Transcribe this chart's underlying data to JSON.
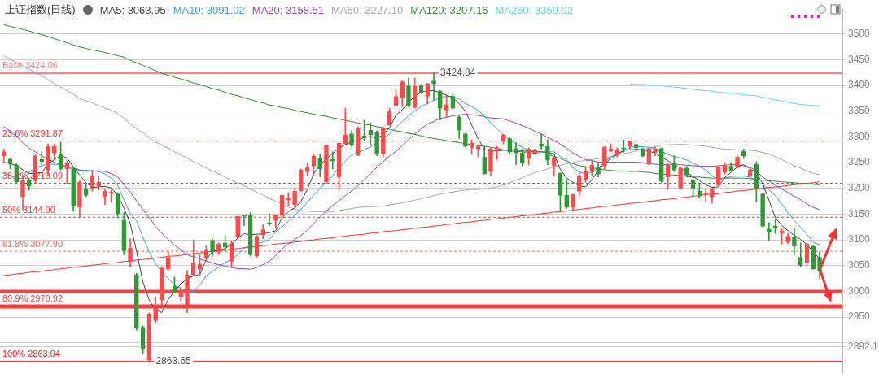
{
  "chart_data": {
    "type": "candlestick",
    "title": "上证指数(日线)",
    "categories": [
      null,
      null,
      null,
      null,
      null,
      null,
      null,
      null,
      null,
      null,
      null,
      null,
      null,
      null,
      null,
      null,
      null,
      null,
      null,
      null,
      null,
      null,
      null,
      null,
      null,
      null,
      null,
      null,
      null,
      null,
      null,
      null,
      null,
      null,
      null,
      null,
      null,
      null,
      null,
      null,
      null,
      null,
      null,
      null,
      null,
      null,
      null,
      null,
      null,
      null,
      null,
      null,
      null,
      null,
      null,
      null,
      null,
      null,
      null,
      null,
      null,
      null,
      null,
      null,
      null,
      null,
      null,
      null,
      null,
      null,
      null,
      null,
      null,
      null,
      null,
      null,
      null,
      null,
      null,
      null,
      null,
      null,
      null,
      null,
      null,
      null,
      null,
      null,
      null,
      null,
      null,
      null,
      null,
      null,
      null,
      null,
      null,
      null,
      null,
      null,
      null,
      null,
      null,
      null,
      null,
      null,
      null,
      null,
      null,
      null,
      null,
      null,
      null,
      null,
      null,
      null,
      null,
      null,
      null,
      null,
      null,
      null,
      null,
      null,
      null,
      null,
      null,
      null,
      null,
      null
    ],
    "ohlc": [
      [
        3263.6,
        3276.4,
        3250.7,
        3271.3
      ],
      [
        3255.9,
        3258.4,
        3237.9,
        3250.7
      ],
      [
        3245.6,
        3248.2,
        3209.7,
        3212.3
      ],
      [
        3184.1,
        3225.1,
        3158.4,
        3214.9
      ],
      [
        3214.9,
        3220,
        3196.9,
        3204.6
      ],
      [
        3214.9,
        3266.1,
        3209.7,
        3263.6
      ],
      [
        3255.9,
        3271.3,
        3245.6,
        3251.8
      ],
      [
        3235.4,
        3286.6,
        3225.1,
        3281.5
      ],
      [
        3268.7,
        3286.6,
        3255.9,
        3281.5
      ],
      [
        3266.1,
        3289.2,
        3235.4,
        3237.9
      ],
      [
        3237.9,
        3253.3,
        3209.7,
        3248.2
      ],
      [
        3237.9,
        3240.5,
        3155.9,
        3166.1
      ],
      [
        3163.6,
        3214.9,
        3143.1,
        3212.3
      ],
      [
        3199.5,
        3209.7,
        3184.1,
        3186.6
      ],
      [
        3199.5,
        3235.4,
        3194.3,
        3225.1
      ],
      [
        3204.6,
        3225.1,
        3196.9,
        3212.3
      ],
      [
        3184.1,
        3199.5,
        3168.7,
        3194.3
      ],
      [
        3191.8,
        3196.9,
        3173.8,
        3193
      ],
      [
        3189.2,
        3191.8,
        3143.1,
        3150.8
      ],
      [
        3137.9,
        3153.3,
        3071.3,
        3079
      ],
      [
        3058.5,
        3102,
        3048.2,
        3084.1
      ],
      [
        3032.8,
        3035.4,
        2925,
        2927.7
      ],
      [
        2930.3,
        2932.8,
        2879,
        2886.7
      ],
      [
        2866.1,
        2958.5,
        2863.65,
        2955.9
      ],
      [
        2943.1,
        2989.2,
        2938,
        2973.8
      ],
      [
        2984.1,
        3048.2,
        2971.3,
        3045.6
      ],
      [
        3043.1,
        3079,
        3040.5,
        3066.1
      ],
      [
        3009.7,
        3027.7,
        2996.9,
        2999.5
      ],
      [
        2989.2,
        3007.2,
        2981.5,
        3002
      ],
      [
        2968.7,
        3040.5,
        2958.5,
        3032.8
      ],
      [
        3032.8,
        3099.5,
        3030.2,
        3055.9
      ],
      [
        3043.1,
        3071.3,
        3030.2,
        3053.3
      ],
      [
        3066.1,
        3089.2,
        3058.5,
        3081.5
      ],
      [
        3099.5,
        3102,
        3068.7,
        3076.4
      ],
      [
        3076.4,
        3094.3,
        3071.3,
        3091.8
      ],
      [
        3094.3,
        3107.2,
        3076.4,
        3086.6
      ],
      [
        3058.5,
        3096.9,
        3045.6,
        3094.3
      ],
      [
        3104.6,
        3145.6,
        3102,
        3145.6
      ],
      [
        3148.2,
        3148.2,
        3127.7,
        3145.6
      ],
      [
        3148.2,
        3153.3,
        3068.7,
        3071.3
      ],
      [
        3068.7,
        3109.7,
        3066.1,
        3107.2
      ],
      [
        3109.7,
        3130.2,
        3102,
        3120
      ],
      [
        3133.8,
        3150.8,
        3127.7,
        3130.2
      ],
      [
        3137.9,
        3148.2,
        3122.5,
        3148.2
      ],
      [
        3148.2,
        3186.6,
        3143.1,
        3186.6
      ],
      [
        3177.4,
        3191.8,
        3166.1,
        3180.5
      ],
      [
        3168.7,
        3199.5,
        3163.6,
        3194.3
      ],
      [
        3195.4,
        3237.9,
        3194.3,
        3235.4
      ],
      [
        3232.8,
        3250.7,
        3225.1,
        3240.5
      ],
      [
        3243.1,
        3266.1,
        3225.1,
        3262.5
      ],
      [
        3258.4,
        3266.1,
        3222.5,
        3237.9
      ],
      [
        3212.3,
        3284.1,
        3209.7,
        3284.1
      ],
      [
        3255.9,
        3271.3,
        3237.9,
        3253.3
      ],
      [
        3222.5,
        3287.7,
        3196.9,
        3287.7
      ],
      [
        3286.6,
        3355.9,
        3286.6,
        3303.6
      ],
      [
        3306.1,
        3312.3,
        3281.5,
        3284.1
      ],
      [
        3264.6,
        3320,
        3263.6,
        3316.4
      ],
      [
        3302,
        3332.8,
        3291.8,
        3297.9
      ],
      [
        3313.3,
        3327.7,
        3284.1,
        3304.6
      ],
      [
        3308.2,
        3312.3,
        3263.6,
        3266.1
      ],
      [
        3267.2,
        3320,
        3261,
        3317.4
      ],
      [
        3323.6,
        3355.9,
        3322.5,
        3349.2
      ],
      [
        3361,
        3391.8,
        3358.4,
        3379
      ],
      [
        3376.4,
        3409.7,
        3358.4,
        3407.1
      ],
      [
        3399.5,
        3414.8,
        3358.4,
        3359.5
      ],
      [
        3356.9,
        3414.8,
        3355.9,
        3398.4
      ],
      [
        3399.5,
        3402,
        3384.1,
        3386.6
      ],
      [
        3379,
        3404.6,
        3363.6,
        3403.6
      ],
      [
        3408.7,
        3424.84,
        3371.3,
        3403.6
      ],
      [
        3389.2,
        3390.2,
        3332.8,
        3355.9
      ],
      [
        3352.3,
        3381.5,
        3337.9,
        3362.5
      ],
      [
        3379,
        3385.1,
        3354.3,
        3355.9
      ],
      [
        3338.9,
        3342,
        3296.9,
        3313.3
      ],
      [
        3306.1,
        3307.2,
        3280.5,
        3281.5
      ],
      [
        3279,
        3294.3,
        3266.1,
        3287.7
      ],
      [
        3276.4,
        3284.1,
        3261,
        3281.5
      ],
      [
        3261,
        3281.5,
        3227.7,
        3227.7
      ],
      [
        3232.8,
        3279,
        3225.1,
        3276.4
      ],
      [
        3276.4,
        3281.5,
        3255.9,
        3277.9
      ],
      [
        3291.8,
        3305.6,
        3286.6,
        3303.6
      ],
      [
        3296.9,
        3299.5,
        3268.7,
        3271.3
      ],
      [
        3277.9,
        3289.2,
        3246.6,
        3268.7
      ],
      [
        3268.7,
        3276.4,
        3243.1,
        3249.7
      ],
      [
        3258.4,
        3279,
        3245.6,
        3276.4
      ],
      [
        3268.2,
        3276.4,
        3266.1,
        3273.8
      ],
      [
        3286.6,
        3305.6,
        3276.4,
        3281.5
      ],
      [
        3281.5,
        3294.3,
        3245.6,
        3254.9
      ],
      [
        3244.6,
        3261,
        3225.1,
        3258.4
      ],
      [
        3230.2,
        3230.2,
        3155.9,
        3186.6
      ],
      [
        3186.6,
        3217.4,
        3161,
        3163.6
      ],
      [
        3163.6,
        3189.2,
        3155.9,
        3188.2
      ],
      [
        3194.3,
        3232.8,
        3184.1,
        3225.1
      ],
      [
        3217.4,
        3243.1,
        3212.3,
        3234.3
      ],
      [
        3232.8,
        3253.3,
        3225.1,
        3245.6
      ],
      [
        3241.5,
        3250.7,
        3222.5,
        3227.7
      ],
      [
        3243.1,
        3281.5,
        3237.9,
        3280.5
      ],
      [
        3272.3,
        3286.6,
        3271.3,
        3276.4
      ],
      [
        3266.1,
        3279,
        3261,
        3275.4
      ],
      [
        3279,
        3294.3,
        3270.2,
        3276.4
      ],
      [
        3281.5,
        3292.8,
        3276.4,
        3290.7
      ],
      [
        3285.6,
        3286.6,
        3273.8,
        3279
      ],
      [
        3277.4,
        3279,
        3261,
        3263.6
      ],
      [
        3248.2,
        3279,
        3245.6,
        3276.4
      ],
      [
        3270.2,
        3280.5,
        3263.6,
        3276.4
      ],
      [
        3277.9,
        3279,
        3212.3,
        3213.8
      ],
      [
        3222.5,
        3248.2,
        3198.4,
        3245.6
      ],
      [
        3249.7,
        3263.6,
        3232.8,
        3235.4
      ],
      [
        3200.5,
        3240.5,
        3198.4,
        3239.5
      ],
      [
        3239.5,
        3243.1,
        3222.5,
        3226.1
      ],
      [
        3214.9,
        3222.5,
        3185.1,
        3200.5
      ],
      [
        3194.3,
        3210.7,
        3181.5,
        3185.1
      ],
      [
        3189.2,
        3199.5,
        3173.8,
        3190.2
      ],
      [
        3183.1,
        3200.5,
        3171.3,
        3199.5
      ],
      [
        3205.6,
        3243.1,
        3203.6,
        3241.5
      ],
      [
        3231.3,
        3250.7,
        3227.7,
        3244.6
      ],
      [
        3243.1,
        3250.7,
        3232.8,
        3234.3
      ],
      [
        3240.5,
        3263.6,
        3239.5,
        3261
      ],
      [
        3272.3,
        3276.4,
        3258.4,
        3263.6
      ],
      [
        3224.1,
        3237.9,
        3222.5,
        3235.4
      ],
      [
        3246.6,
        3251.8,
        3173.8,
        3199.5
      ],
      [
        3189.2,
        3190.2,
        3125.1,
        3126.6
      ],
      [
        3121,
        3133.8,
        3099.5,
        3115.9
      ],
      [
        3126.6,
        3139,
        3112.3,
        3122.5
      ],
      [
        3113.3,
        3123.6,
        3091.8,
        3117.4
      ],
      [
        3095.4,
        3112.3,
        3092.8,
        3107.2
      ],
      [
        3105.6,
        3122.5,
        3071.3,
        3087.7
      ],
      [
        3066.1,
        3094.3,
        3048.2,
        3050.7
      ],
      [
        3055.9,
        3094.3,
        3048.2,
        3092.8
      ],
      [
        3087.7,
        3089.2,
        3043.1,
        3044.1
      ],
      [
        3066.1,
        3077.4,
        3025.1,
        3040.5
      ]
    ],
    "series": [
      {
        "type": "line",
        "name": "MA5: 3063.95",
        "color": "#444444",
        "values": [
          3251,
          3248,
          3245,
          3236,
          3229,
          3229,
          3231,
          3247,
          3256,
          3264,
          3259,
          3242,
          3226,
          3211,
          3202,
          3203,
          3204,
          3201,
          3187,
          3162,
          3132,
          3078,
          3018,
          2983,
          2964,
          2959,
          2984,
          3000,
          3014,
          3025,
          3030,
          3033,
          3061,
          3078,
          3080,
          3083,
          3092,
          3104,
          3112,
          3110,
          3111,
          3112,
          3114,
          3118,
          3143,
          3155,
          3162,
          3175,
          3198,
          3228,
          3246,
          3257,
          3268,
          3278,
          3285,
          3290,
          3294,
          3299,
          3301,
          3297,
          3305,
          3318,
          3342,
          3353,
          3367,
          3379,
          3387,
          3390,
          3390,
          3386,
          3381,
          3376,
          3365,
          3350,
          3323,
          3297,
          3276,
          3272,
          3273,
          3274,
          3275,
          3275,
          3273,
          3272,
          3271,
          3271,
          3270,
          3267,
          3237,
          3220,
          3212,
          3205,
          3203,
          3217,
          3235,
          3249,
          3258,
          3266,
          3274,
          3275,
          3276,
          3275,
          3273,
          3268,
          3261,
          3254,
          3246,
          3239,
          3231,
          3223,
          3215,
          3207,
          3202,
          3203,
          3221,
          3231,
          3242,
          3246,
          3238,
          3231,
          3209,
          3177,
          3143,
          3128,
          3118,
          3109,
          3101,
          3091,
          3077,
          3064
        ]
      },
      {
        "type": "line",
        "name": "MA10: 3091.02",
        "color": "#3b9be8",
        "values": [
          3229,
          3225,
          3220,
          3219,
          3231,
          3241,
          3244,
          3247,
          3247,
          3246,
          3243,
          3240,
          3236,
          3233,
          3234,
          3233,
          3228,
          3220,
          3207,
          3178,
          3151,
          3137,
          3105,
          3077,
          3054,
          3037,
          3025,
          3012,
          3006,
          3000,
          3000,
          3012,
          3030,
          3039,
          3047,
          3056,
          3062,
          3071,
          3084,
          3088,
          3092,
          3096,
          3101,
          3116,
          3125,
          3137,
          3148,
          3160,
          3173,
          3187,
          3200,
          3212,
          3225,
          3240,
          3253,
          3265,
          3270,
          3275,
          3281,
          3289,
          3297,
          3306,
          3318,
          3330,
          3341,
          3351,
          3359,
          3365,
          3371,
          3376,
          3379,
          3379,
          3374,
          3365,
          3359,
          3352,
          3340,
          3328,
          3316,
          3304,
          3295,
          3286,
          3280,
          3274,
          3273,
          3271,
          3271,
          3271,
          3262,
          3256,
          3240,
          3232,
          3228,
          3232,
          3239,
          3251,
          3261,
          3267,
          3272,
          3280,
          3281,
          3281,
          3280,
          3277,
          3272,
          3266,
          3262,
          3259,
          3255,
          3249,
          3243,
          3235,
          3225,
          3217,
          3220,
          3223,
          3224,
          3224,
          3222,
          3215,
          3208,
          3197,
          3186,
          3170,
          3153,
          3138,
          3124,
          3111,
          3095,
          3091
        ]
      },
      {
        "type": "line",
        "name": "MA20: 3158.51",
        "color": "#a040b0",
        "values": [
          3320,
          3311,
          3301,
          3289,
          3278,
          3271,
          3263,
          3257,
          3251,
          3246,
          3241,
          3238,
          3235,
          3235,
          3234,
          3234,
          3233,
          3229,
          3222,
          3208,
          3193,
          3176,
          3159,
          3144,
          3126,
          3113,
          3101,
          3090,
          3081,
          3071,
          3067,
          3063,
          3059,
          3055,
          3052,
          3049,
          3047,
          3044,
          3044,
          3043,
          3046,
          3052,
          3059,
          3070,
          3082,
          3092,
          3101,
          3109,
          3119,
          3132,
          3144,
          3156,
          3167,
          3176,
          3186,
          3195,
          3205,
          3217,
          3229,
          3241,
          3252,
          3263,
          3272,
          3283,
          3295,
          3306,
          3316,
          3325,
          3330,
          3336,
          3338,
          3341,
          3343,
          3344,
          3343,
          3342,
          3339,
          3337,
          3336,
          3335,
          3331,
          3327,
          3322,
          3317,
          3311,
          3306,
          3299,
          3293,
          3286,
          3278,
          3269,
          3262,
          3256,
          3254,
          3251,
          3251,
          3251,
          3251,
          3251,
          3251,
          3251,
          3250,
          3248,
          3247,
          3246,
          3246,
          3246,
          3246,
          3245,
          3244,
          3243,
          3243,
          3243,
          3244,
          3245,
          3246,
          3246,
          3244,
          3241,
          3234,
          3222,
          3214,
          3206,
          3199,
          3192,
          3185,
          3178,
          3170,
          3163,
          3159
        ]
      },
      {
        "type": "line",
        "name": "MA60: 3227.10",
        "color": "#a8a8a8",
        "values": [
          3458,
          3451,
          3445,
          3438,
          3432,
          3425,
          3419,
          3411,
          3404,
          3397,
          3390,
          3383,
          3375,
          3370,
          3366,
          3361,
          3356,
          3352,
          3346,
          3336,
          3325,
          3316,
          3308,
          3299,
          3290,
          3284,
          3278,
          3271,
          3265,
          3259,
          3252,
          3246,
          3240,
          3234,
          3228,
          3222,
          3216,
          3211,
          3205,
          3199,
          3193,
          3187,
          3181,
          3175,
          3169,
          3164,
          3160,
          3157,
          3156,
          3155,
          3155,
          3154,
          3155,
          3157,
          3159,
          3161,
          3163,
          3164,
          3164,
          3165,
          3166,
          3168,
          3170,
          3172,
          3175,
          3177,
          3180,
          3183,
          3186,
          3189,
          3191,
          3193,
          3195,
          3197,
          3198,
          3198,
          3199,
          3200,
          3203,
          3207,
          3211,
          3216,
          3221,
          3226,
          3231,
          3234,
          3238,
          3242,
          3245,
          3248,
          3250,
          3253,
          3254,
          3256,
          3258,
          3260,
          3262,
          3265,
          3267,
          3270,
          3273,
          3276,
          3278,
          3281,
          3284,
          3285,
          3285,
          3286,
          3285,
          3284,
          3283,
          3282,
          3280,
          3278,
          3276,
          3276,
          3275,
          3275,
          3274,
          3273,
          3270,
          3267,
          3261,
          3256,
          3250,
          3244,
          3239,
          3234,
          3229,
          3227
        ]
      },
      {
        "type": "line",
        "name": "MA120: 3207.16",
        "color": "#2e8b2e",
        "values": [
          3518,
          3515,
          3512,
          3509,
          3506,
          3502,
          3499,
          3495,
          3491,
          3487,
          3483,
          3479,
          3475,
          3472,
          3469,
          3467,
          3464,
          3461,
          3458,
          3455,
          3449,
          3444,
          3439,
          3434,
          3429,
          3423,
          3420,
          3416,
          3413,
          3409,
          3405,
          3402,
          3398,
          3394,
          3391,
          3387,
          3383,
          3380,
          3376,
          3373,
          3369,
          3366,
          3362,
          3360,
          3357,
          3355,
          3352,
          3349,
          3347,
          3344,
          3342,
          3340,
          3337,
          3335,
          3332,
          3330,
          3327,
          3325,
          3323,
          3320,
          3318,
          3315,
          3312,
          3310,
          3307,
          3305,
          3302,
          3299,
          3297,
          3295,
          3293,
          3291,
          3289,
          3287,
          3285,
          3283,
          3282,
          3280,
          3278,
          3275,
          3273,
          3272,
          3271,
          3270,
          3268,
          3267,
          3266,
          3262,
          3258,
          3253,
          3248,
          3244,
          3242,
          3240,
          3238,
          3236,
          3235,
          3234,
          3234,
          3233,
          3233,
          3232,
          3231,
          3229,
          3228,
          3227,
          3226,
          3225,
          3223,
          3222,
          3222,
          3221,
          3220,
          3220,
          3220,
          3220,
          3220,
          3220,
          3219,
          3217,
          3216,
          3215,
          3214,
          3213,
          3212,
          3211,
          3210,
          3209,
          3208,
          3207
        ]
      },
      {
        "type": "line",
        "name": "MA250: 3359.92",
        "color": "#5fd8e8",
        "values": [
          null,
          null,
          null,
          null,
          null,
          null,
          null,
          null,
          null,
          null,
          null,
          null,
          null,
          null,
          null,
          null,
          null,
          null,
          null,
          null,
          null,
          null,
          null,
          null,
          null,
          null,
          null,
          null,
          null,
          null,
          null,
          null,
          null,
          null,
          null,
          null,
          null,
          null,
          null,
          null,
          null,
          null,
          null,
          null,
          null,
          null,
          null,
          null,
          null,
          null,
          null,
          null,
          null,
          null,
          null,
          null,
          null,
          null,
          null,
          null,
          null,
          null,
          null,
          null,
          null,
          null,
          null,
          null,
          null,
          null,
          null,
          null,
          null,
          null,
          null,
          null,
          null,
          null,
          null,
          null,
          null,
          null,
          null,
          null,
          null,
          null,
          null,
          null,
          null,
          null,
          null,
          null,
          null,
          null,
          null,
          null,
          null,
          null,
          null,
          3403,
          3402,
          3402,
          3401,
          3401,
          3400,
          3398,
          3397,
          3396,
          3394,
          3393,
          3391,
          3390,
          3389,
          3387,
          3386,
          3385,
          3384,
          3382,
          3381,
          3380,
          3377,
          3375,
          3372,
          3370,
          3367,
          3365,
          3363,
          3362,
          3361,
          3360
        ]
      },
      {
        "type": "line",
        "color": "#ff2a2a",
        "values": [
          3031,
          3032,
          3034,
          3035,
          3037,
          3038,
          3039,
          3041,
          3042,
          3044,
          3045,
          3047,
          3048,
          3049,
          3051,
          3052,
          3054,
          3055,
          3056,
          3058,
          3059,
          3061,
          3062,
          3063,
          3065,
          3066,
          3068,
          3069,
          3070,
          3072,
          3073,
          3075,
          3076,
          3078,
          3079,
          3080,
          3082,
          3083,
          3085,
          3086,
          3087,
          3089,
          3090,
          3092,
          3093,
          3094,
          3096,
          3097,
          3099,
          3100,
          3102,
          3103,
          3104,
          3106,
          3107,
          3109,
          3110,
          3111,
          3113,
          3114,
          3116,
          3117,
          3118,
          3120,
          3121,
          3123,
          3124,
          3125,
          3127,
          3128,
          3130,
          3131,
          3133,
          3134,
          3135,
          3137,
          3138,
          3140,
          3141,
          3142,
          3144,
          3145,
          3147,
          3148,
          3149,
          3151,
          3152,
          3154,
          3155,
          3156,
          3158,
          3159,
          3161,
          3162,
          3164,
          3165,
          3166,
          3168,
          3169,
          3171,
          3172,
          3173,
          3175,
          3176,
          3178,
          3179,
          3180,
          3182,
          3183,
          3185,
          3186,
          3188,
          3189,
          3190,
          3192,
          3193,
          3195,
          3196,
          3197,
          3199,
          3200,
          3202,
          3203,
          3204,
          3206,
          3207,
          3209,
          3210,
          3211,
          3213
        ]
      }
    ],
    "ylim": [
      2840,
      3550
    ],
    "yticks": [
      {
        "value": 2892.1,
        "label": "2892.1"
      },
      {
        "value": 2900,
        "label": null
      },
      2950,
      3000,
      3050,
      3100,
      3150,
      3200,
      3250,
      3300,
      3350,
      3400,
      3450,
      3500
    ],
    "grid": "y",
    "legend": "top left",
    "tick_labels": "y",
    "ref_lines": [
      {
        "axis": "y",
        "value": 3424.06,
        "label": "Base 3424.06",
        "color": "#ff8080",
        "line_style": "solid"
      },
      {
        "axis": "y",
        "value": 3291.87,
        "label": "23.6% 3291.87",
        "color": "#ff3030",
        "line_style": "dashed"
      },
      {
        "axis": "y",
        "value": 3210.09,
        "label": "38.2% 3210.09",
        "color": "#ff3030",
        "line_style": "dashed"
      },
      {
        "axis": "y",
        "value": 3144.0,
        "label": "50% 3144.00",
        "color": "#ff3030",
        "line_style": "dashed"
      },
      {
        "axis": "y",
        "value": 3077.9,
        "label": "61.8% 3077.90",
        "color": "#ff6060",
        "line_style": "dashed"
      },
      {
        "axis": "y",
        "value": 3000,
        "color": "#ff4040",
        "line_style": "solid"
      },
      {
        "axis": "y",
        "value": 2970.92,
        "label": "80.9% 2970.92",
        "color": "#ff3b3b",
        "line_style": "solid"
      },
      {
        "axis": "y",
        "value": 2863.94,
        "label": "100% 2863.94",
        "color": "#ff1a1a",
        "line_style": "solid"
      }
    ],
    "annotations": [
      {
        "text": "3424.84",
        "y": 3424.84
      },
      {
        "text": "2863.65",
        "y": 2863.65
      }
    ]
  }
}
